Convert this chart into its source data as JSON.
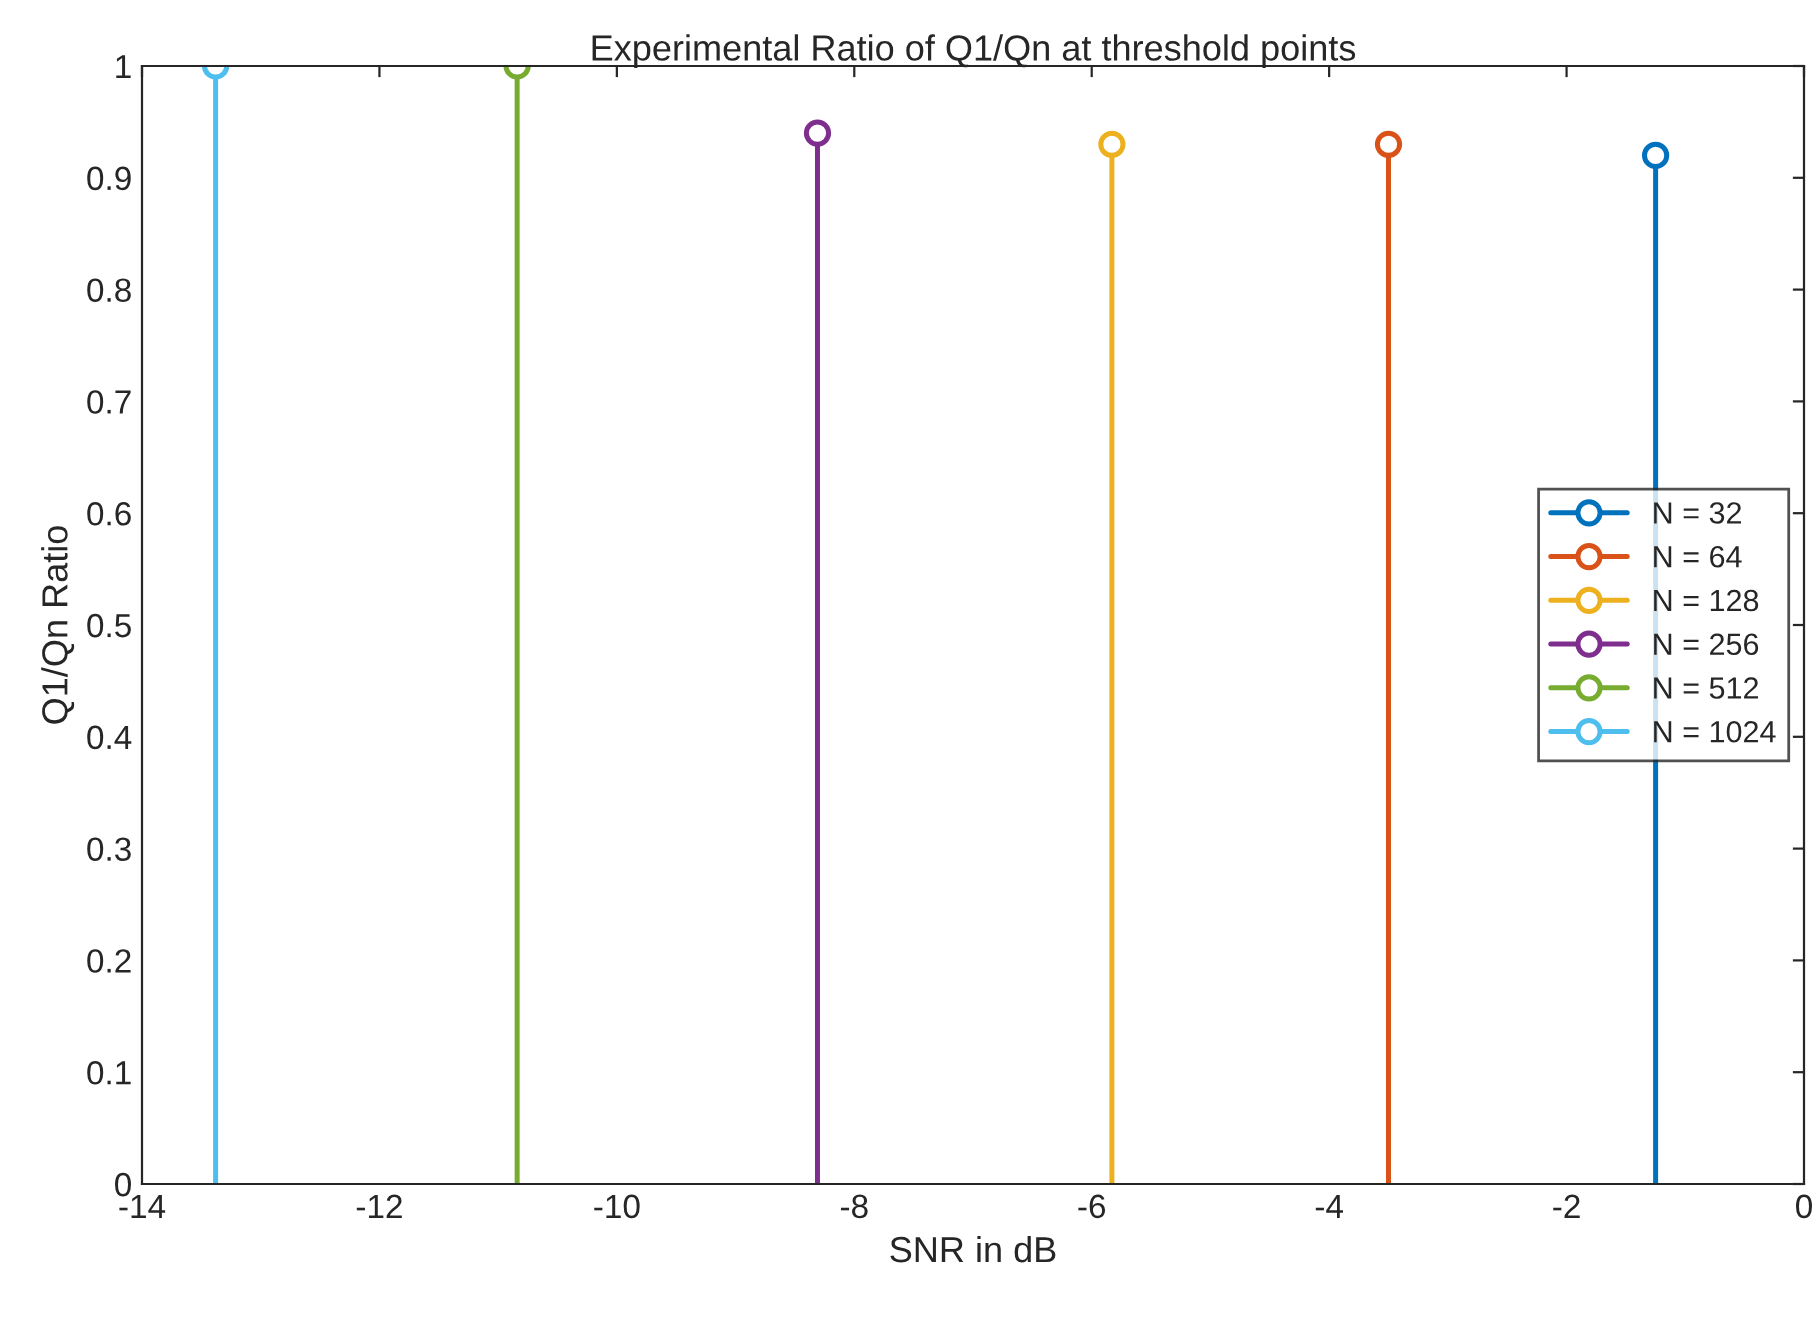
{
  "chart_data": {
    "type": "lollipop",
    "title": "Experimental Ratio of Q1/Qn at threshold points",
    "xlabel": "SNR in dB",
    "ylabel": "Q1/Qn Ratio",
    "xlim": [
      -14,
      0
    ],
    "xticks": [
      -14,
      -12,
      -10,
      -8,
      -6,
      -4,
      -2,
      0
    ],
    "ylim": [
      0,
      1
    ],
    "yticks": [
      0,
      0.1,
      0.2,
      0.3,
      0.4,
      0.5,
      0.6,
      0.7,
      0.8,
      0.9,
      1
    ],
    "marker": "circle",
    "legend": "right",
    "grid": false,
    "series": [
      {
        "name": "N = 32",
        "color": "#0072bd",
        "x": [
          -1.25
        ],
        "values": [
          0.92
        ]
      },
      {
        "name": "N = 64",
        "color": "#d95319",
        "x": [
          -3.5
        ],
        "values": [
          0.93
        ]
      },
      {
        "name": "N = 128",
        "color": "#edb120",
        "x": [
          -5.83
        ],
        "values": [
          0.93
        ]
      },
      {
        "name": "N = 256",
        "color": "#7e2f8e",
        "x": [
          -8.31
        ],
        "values": [
          0.94
        ]
      },
      {
        "name": "N = 512",
        "color": "#77ac30",
        "x": [
          -10.84
        ],
        "values": [
          1.0
        ]
      },
      {
        "name": "N = 1024",
        "color": "#4dbeee",
        "x": [
          -13.38
        ],
        "values": [
          1.0
        ]
      }
    ]
  }
}
